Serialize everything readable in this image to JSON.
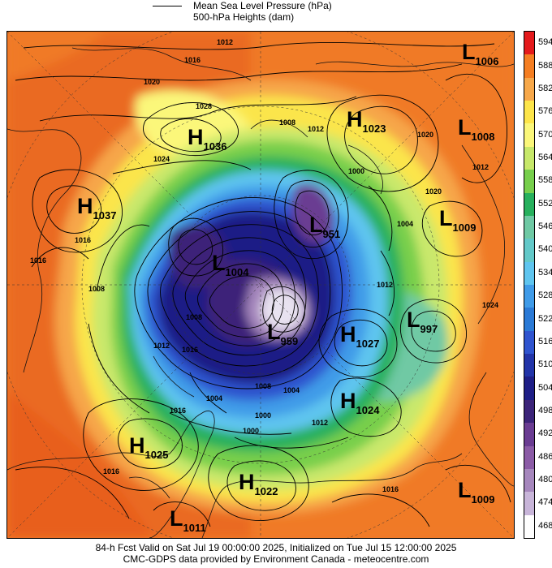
{
  "legend": {
    "line1": "Mean Sea Level Pressure (hPa)",
    "line2": "500-hPa Heights (dam)"
  },
  "colorbar": {
    "values": [
      "594",
      "588",
      "582",
      "576",
      "570",
      "564",
      "558",
      "552",
      "546",
      "540",
      "534",
      "528",
      "522",
      "516",
      "510",
      "504",
      "498",
      "492",
      "486",
      "480",
      "474",
      "468"
    ],
    "colors": [
      "#e41a1c",
      "#f57e22",
      "#f7a84a",
      "#fde54a",
      "#fbf77a",
      "#c7e86a",
      "#77cf4c",
      "#27b05d",
      "#6fc9a4",
      "#63c9c9",
      "#5fc5ef",
      "#3f9be8",
      "#2b7ad6",
      "#2f54cf",
      "#2234a8",
      "#1e1e86",
      "#3c2479",
      "#6a3c92",
      "#8b5ba6",
      "#a687bd",
      "#c8b5d9",
      "#ffffff"
    ]
  },
  "pressure_centers": [
    {
      "type": "L",
      "value": "1006"
    },
    {
      "type": "H",
      "value": "1023"
    },
    {
      "type": "L",
      "value": "1008"
    },
    {
      "type": "H",
      "value": "1036"
    },
    {
      "type": "H",
      "value": "1037"
    },
    {
      "type": "L",
      "value": "1009"
    },
    {
      "type": "L",
      "value": "951"
    },
    {
      "type": "L",
      "value": "1004"
    },
    {
      "type": "L",
      "value": "997"
    },
    {
      "type": "H",
      "value": "1027"
    },
    {
      "type": "L",
      "value": "959"
    },
    {
      "type": "H",
      "value": "1024"
    },
    {
      "type": "H",
      "value": "1025"
    },
    {
      "type": "H",
      "value": "1022"
    },
    {
      "type": "L",
      "value": "1009"
    },
    {
      "type": "L",
      "value": "1011"
    }
  ],
  "contour_labels": [
    "1012",
    "1016",
    "1020",
    "1028",
    "1024",
    "1008",
    "1012",
    "1020",
    "1012",
    "1004",
    "1000",
    "1016",
    "1016",
    "1008",
    "1012",
    "1016",
    "1020",
    "1008",
    "1004",
    "1000",
    "1016",
    "1012",
    "1024",
    "1016",
    "1000",
    "1016",
    "1004",
    "1008",
    "1012"
  ],
  "footer": {
    "line1": "84-h Fcst Valid on Sat Jul 19 00:00:00 2025, Initialized on Tue Jul 15 12:00:00 2025",
    "line2": "CMC-GDPS data provided by Environment Canada - meteocentre.com"
  }
}
